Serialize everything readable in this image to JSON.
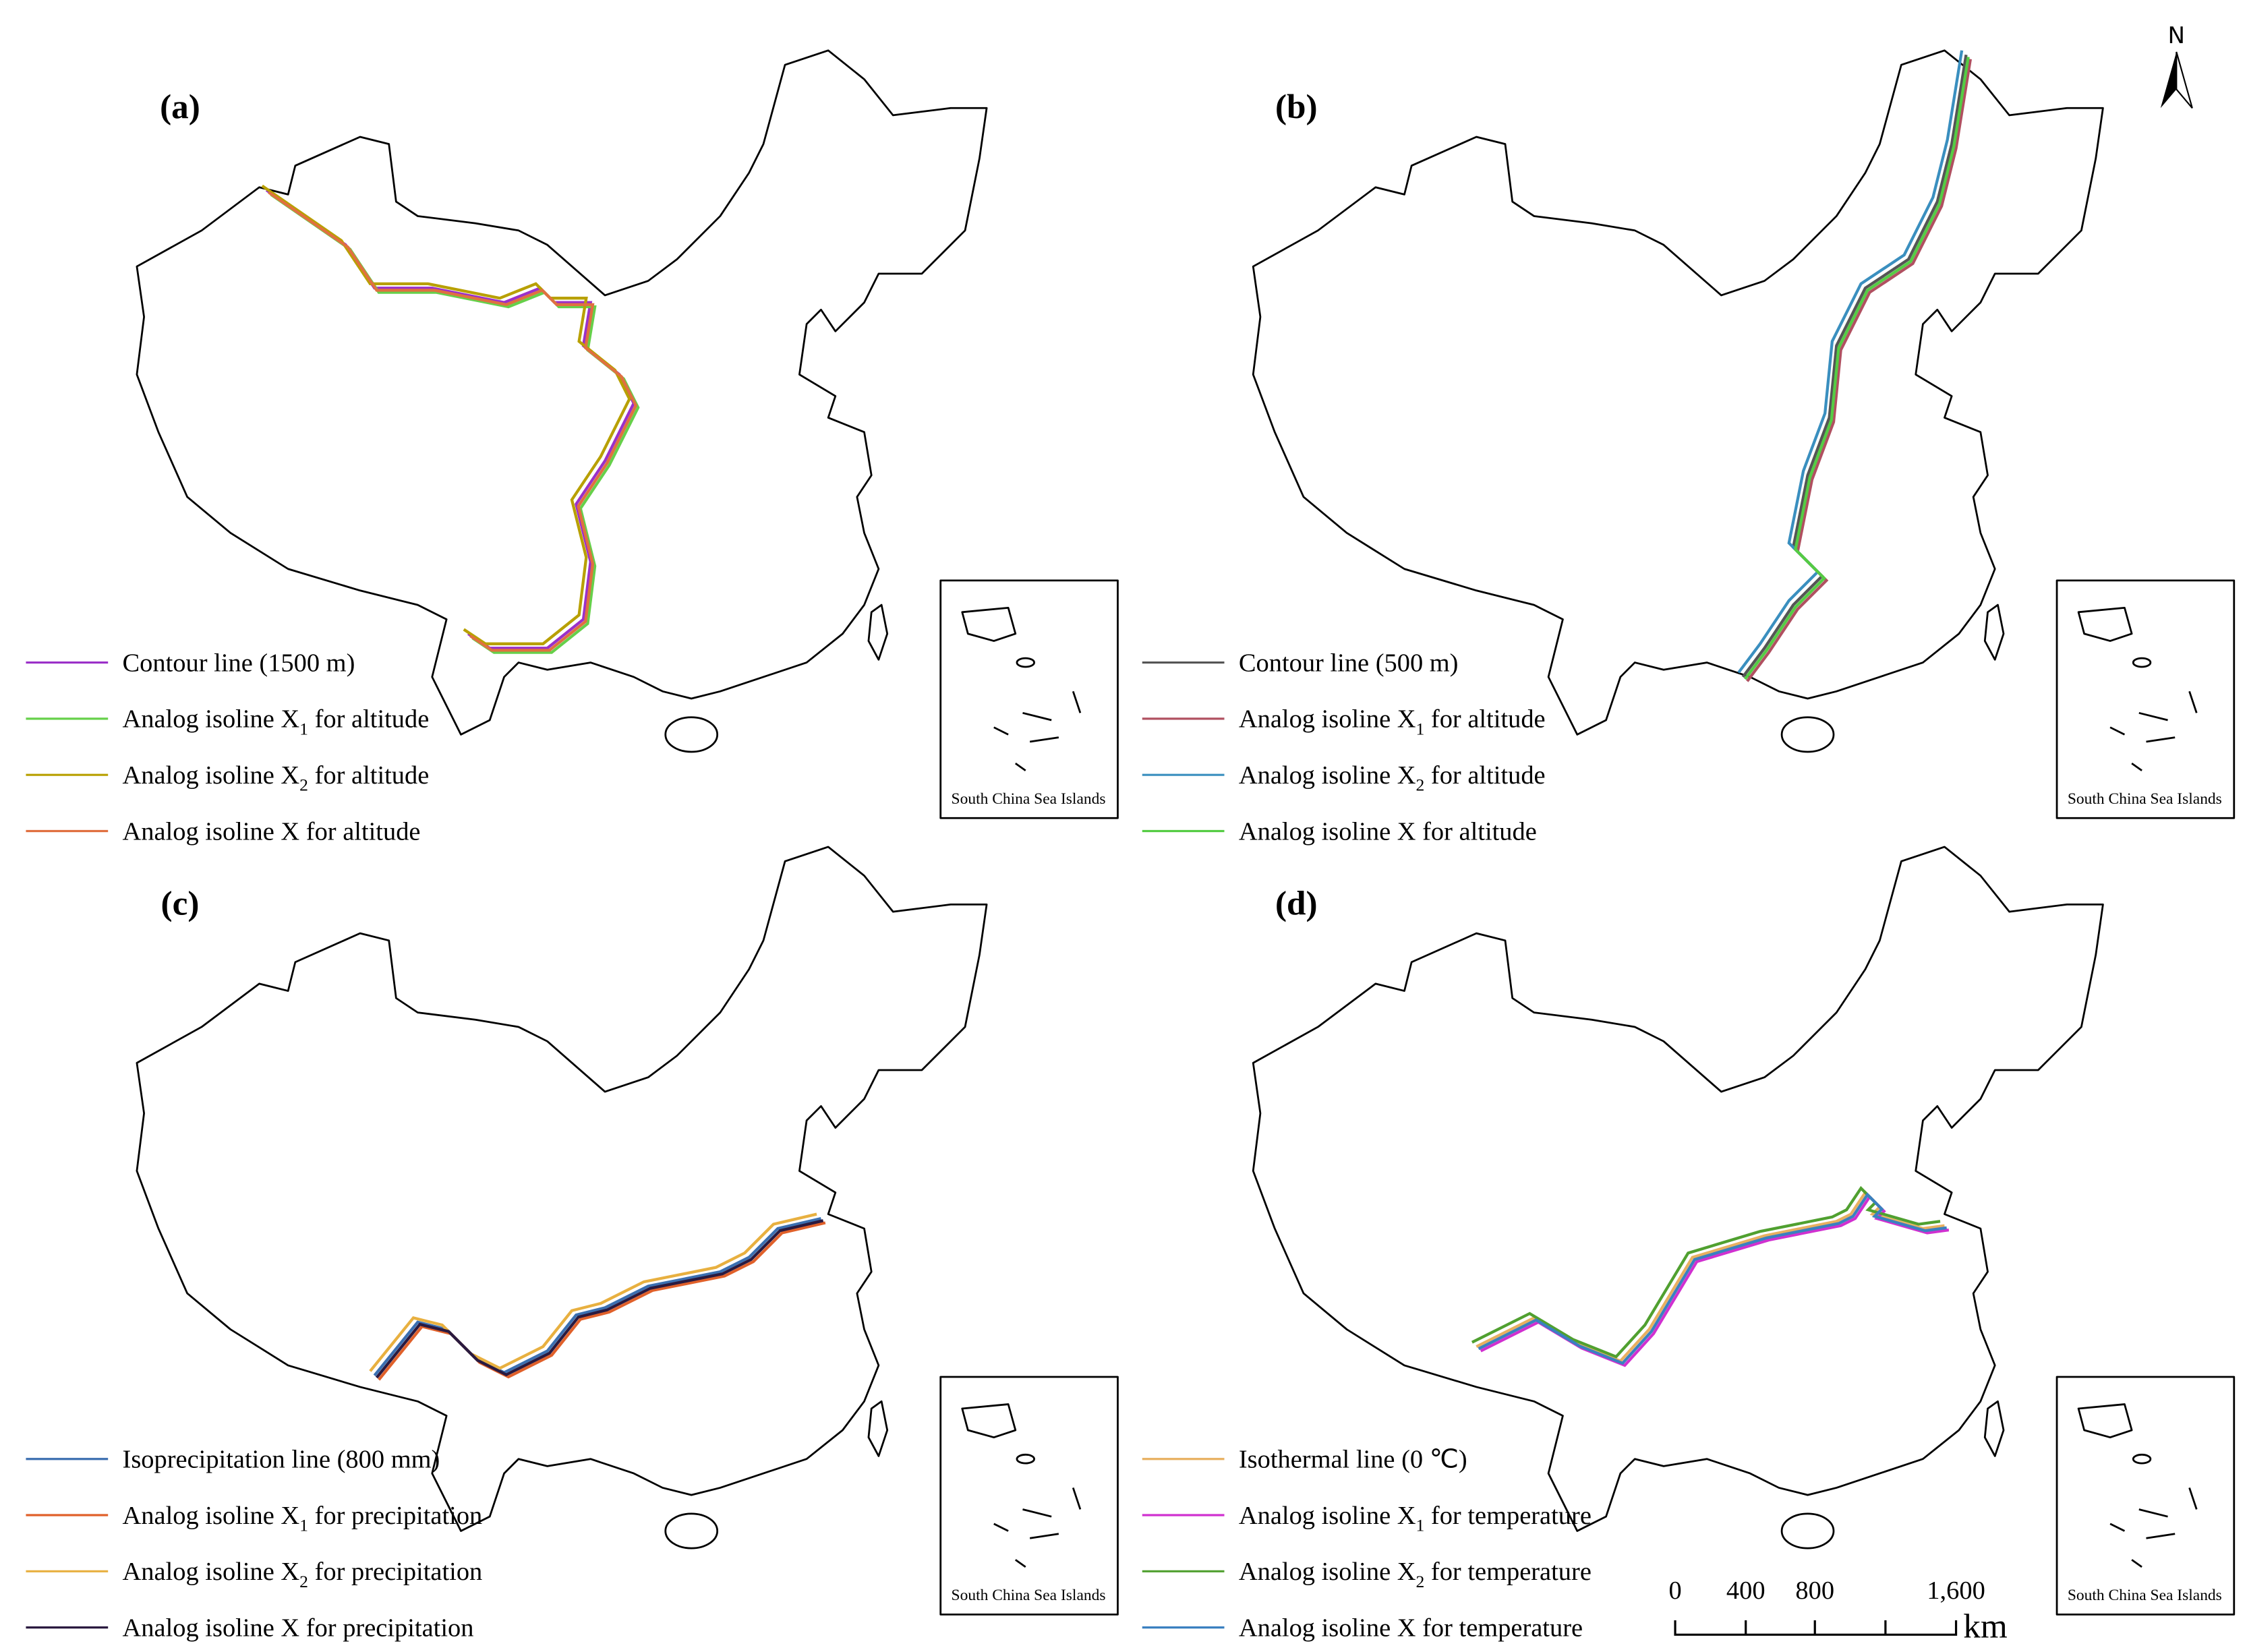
{
  "panels": [
    {
      "label": "(a)",
      "legend": [
        {
          "text": "Contour line (1500 m)",
          "color": "#9b30c8"
        },
        {
          "text": "Analog isoline X",
          "subscript": "1",
          "rest": " for altitude",
          "color": "#66d04a"
        },
        {
          "text": "Analog isoline X",
          "subscript": "2",
          "rest": " for altitude",
          "color": "#b8a000"
        },
        {
          "text": "Analog isoline X for altitude",
          "color": "#e07040"
        }
      ]
    },
    {
      "label": "(b)",
      "legend": [
        {
          "text": "Contour line (500 m)",
          "color": "#555555"
        },
        {
          "text": "Analog isoline X",
          "subscript": "1",
          "rest": " for altitude",
          "color": "#b05060"
        },
        {
          "text": "Analog isoline X",
          "subscript": "2",
          "rest": " for altitude",
          "color": "#3a8fbf"
        },
        {
          "text": "Analog isoline X for altitude",
          "color": "#55cc44"
        }
      ]
    },
    {
      "label": "(c)",
      "legend": [
        {
          "text": "Isoprecipitation line (800 mm)",
          "color": "#3b6fb0"
        },
        {
          "text": "Analog isoline X",
          "subscript": "1",
          "rest": " for precipitation",
          "color": "#e0602a"
        },
        {
          "text": "Analog isoline X",
          "subscript": "2",
          "rest": " for precipitation",
          "color": "#e8b040"
        },
        {
          "text": "Analog isoline X for precipitation",
          "color": "#2a1a40"
        }
      ]
    },
    {
      "label": "(d)",
      "legend": [
        {
          "text": "Isothermal line (0 ℃)",
          "color": "#e8b060"
        },
        {
          "text": "Analog isoline X",
          "subscript": "1",
          "rest": " for temperature",
          "color": "#d030d0"
        },
        {
          "text": "Analog isoline X",
          "subscript": "2",
          "rest": " for temperature",
          "color": "#50a030"
        },
        {
          "text": "Analog isoline X for temperature",
          "color": "#3a80c0"
        }
      ]
    }
  ],
  "inset_label": "South China Sea Islands",
  "north": "N",
  "scale_bar": {
    "labels": [
      "0",
      "400",
      "800",
      "1,600"
    ],
    "unit": "km"
  }
}
